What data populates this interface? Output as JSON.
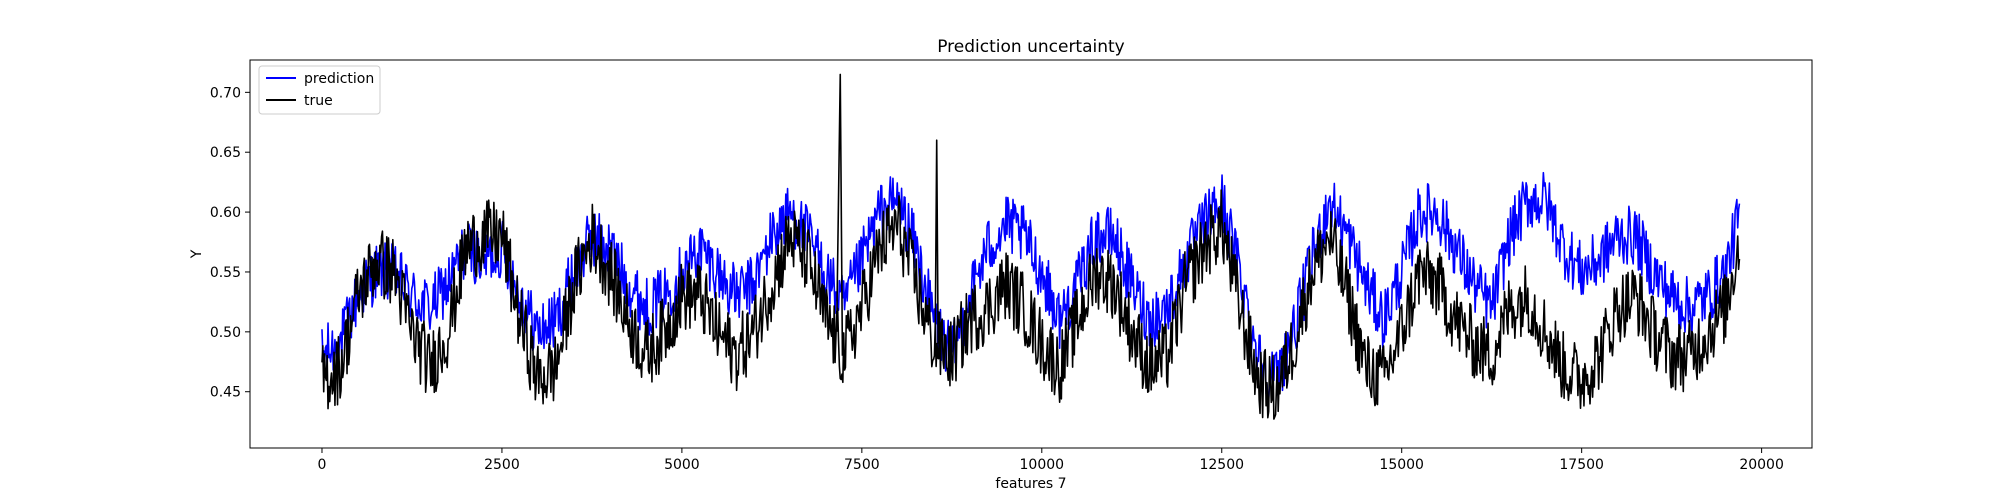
{
  "chart_data": {
    "type": "line",
    "title": "Prediction uncertainty",
    "xlabel": "features 7",
    "ylabel": "Y",
    "xlim": [
      -1000,
      20700
    ],
    "ylim": [
      0.403,
      0.727
    ],
    "xticks": [
      0,
      2500,
      5000,
      7500,
      10000,
      12500,
      15000,
      17500,
      20000
    ],
    "yticks": [
      0.45,
      0.5,
      0.55,
      0.6,
      0.65,
      0.7
    ],
    "ytick_labels": [
      "0.45",
      "0.50",
      "0.55",
      "0.60",
      "0.65",
      "0.70"
    ],
    "grid": false,
    "legend_position": "top-left",
    "colors": {
      "prediction": "#0000ff",
      "true": "#000000"
    },
    "series": [
      {
        "name": "prediction",
        "x": [
          0,
          250,
          500,
          750,
          1000,
          1250,
          1500,
          1750,
          2000,
          2250,
          2500,
          2750,
          3000,
          3250,
          3500,
          3750,
          4000,
          4250,
          4500,
          4750,
          5000,
          5250,
          5500,
          5750,
          6000,
          6250,
          6500,
          6750,
          7000,
          7250,
          7500,
          7750,
          8000,
          8250,
          8500,
          8750,
          9000,
          9250,
          9500,
          9750,
          10000,
          10250,
          10500,
          10750,
          11000,
          11250,
          11500,
          11750,
          12000,
          12250,
          12500,
          12750,
          13000,
          13250,
          13500,
          13750,
          14000,
          14250,
          14500,
          14750,
          15000,
          15250,
          15500,
          15750,
          16000,
          16250,
          16500,
          16750,
          17000,
          17250,
          17500,
          17750,
          18000,
          18250,
          18500,
          18750,
          19000,
          19250,
          19500,
          19700
        ],
        "values": [
          0.48,
          0.49,
          0.53,
          0.55,
          0.55,
          0.53,
          0.52,
          0.54,
          0.57,
          0.56,
          0.57,
          0.53,
          0.5,
          0.51,
          0.55,
          0.58,
          0.57,
          0.54,
          0.52,
          0.53,
          0.55,
          0.57,
          0.55,
          0.53,
          0.54,
          0.58,
          0.6,
          0.58,
          0.55,
          0.52,
          0.56,
          0.6,
          0.61,
          0.57,
          0.51,
          0.48,
          0.53,
          0.57,
          0.59,
          0.58,
          0.55,
          0.51,
          0.54,
          0.58,
          0.58,
          0.54,
          0.51,
          0.52,
          0.56,
          0.59,
          0.61,
          0.55,
          0.48,
          0.46,
          0.5,
          0.56,
          0.61,
          0.58,
          0.54,
          0.51,
          0.55,
          0.6,
          0.6,
          0.57,
          0.54,
          0.52,
          0.58,
          0.61,
          0.61,
          0.57,
          0.55,
          0.56,
          0.58,
          0.58,
          0.55,
          0.53,
          0.52,
          0.53,
          0.55,
          0.6
        ]
      },
      {
        "name": "true",
        "x": [
          0,
          250,
          500,
          750,
          1000,
          1250,
          1500,
          1750,
          2000,
          2250,
          2500,
          2750,
          3000,
          3250,
          3500,
          3750,
          4000,
          4250,
          4500,
          4750,
          5000,
          5250,
          5500,
          5750,
          6000,
          6250,
          6500,
          6750,
          7000,
          7250,
          7500,
          7750,
          8000,
          8250,
          8500,
          8750,
          9000,
          9250,
          9500,
          9750,
          10000,
          10250,
          10500,
          10750,
          11000,
          11250,
          11500,
          11750,
          12000,
          12250,
          12500,
          12750,
          13000,
          13250,
          13500,
          13750,
          14000,
          14250,
          14500,
          14750,
          15000,
          15250,
          15500,
          15750,
          16000,
          16250,
          16500,
          16750,
          17000,
          17250,
          17500,
          17750,
          18000,
          18250,
          18500,
          18750,
          19000,
          19250,
          19500,
          19700
        ],
        "values": [
          0.46,
          0.47,
          0.53,
          0.56,
          0.55,
          0.5,
          0.47,
          0.5,
          0.57,
          0.58,
          0.58,
          0.51,
          0.46,
          0.47,
          0.54,
          0.58,
          0.55,
          0.51,
          0.48,
          0.5,
          0.53,
          0.53,
          0.5,
          0.48,
          0.5,
          0.54,
          0.58,
          0.56,
          0.51,
          0.48,
          0.52,
          0.57,
          0.59,
          0.54,
          0.49,
          0.48,
          0.51,
          0.52,
          0.54,
          0.52,
          0.49,
          0.47,
          0.51,
          0.55,
          0.54,
          0.5,
          0.47,
          0.48,
          0.54,
          0.57,
          0.59,
          0.52,
          0.46,
          0.45,
          0.49,
          0.55,
          0.58,
          0.53,
          0.47,
          0.46,
          0.5,
          0.55,
          0.54,
          0.51,
          0.49,
          0.48,
          0.52,
          0.53,
          0.5,
          0.47,
          0.46,
          0.48,
          0.52,
          0.53,
          0.5,
          0.48,
          0.48,
          0.5,
          0.52,
          0.58
        ]
      }
    ]
  }
}
